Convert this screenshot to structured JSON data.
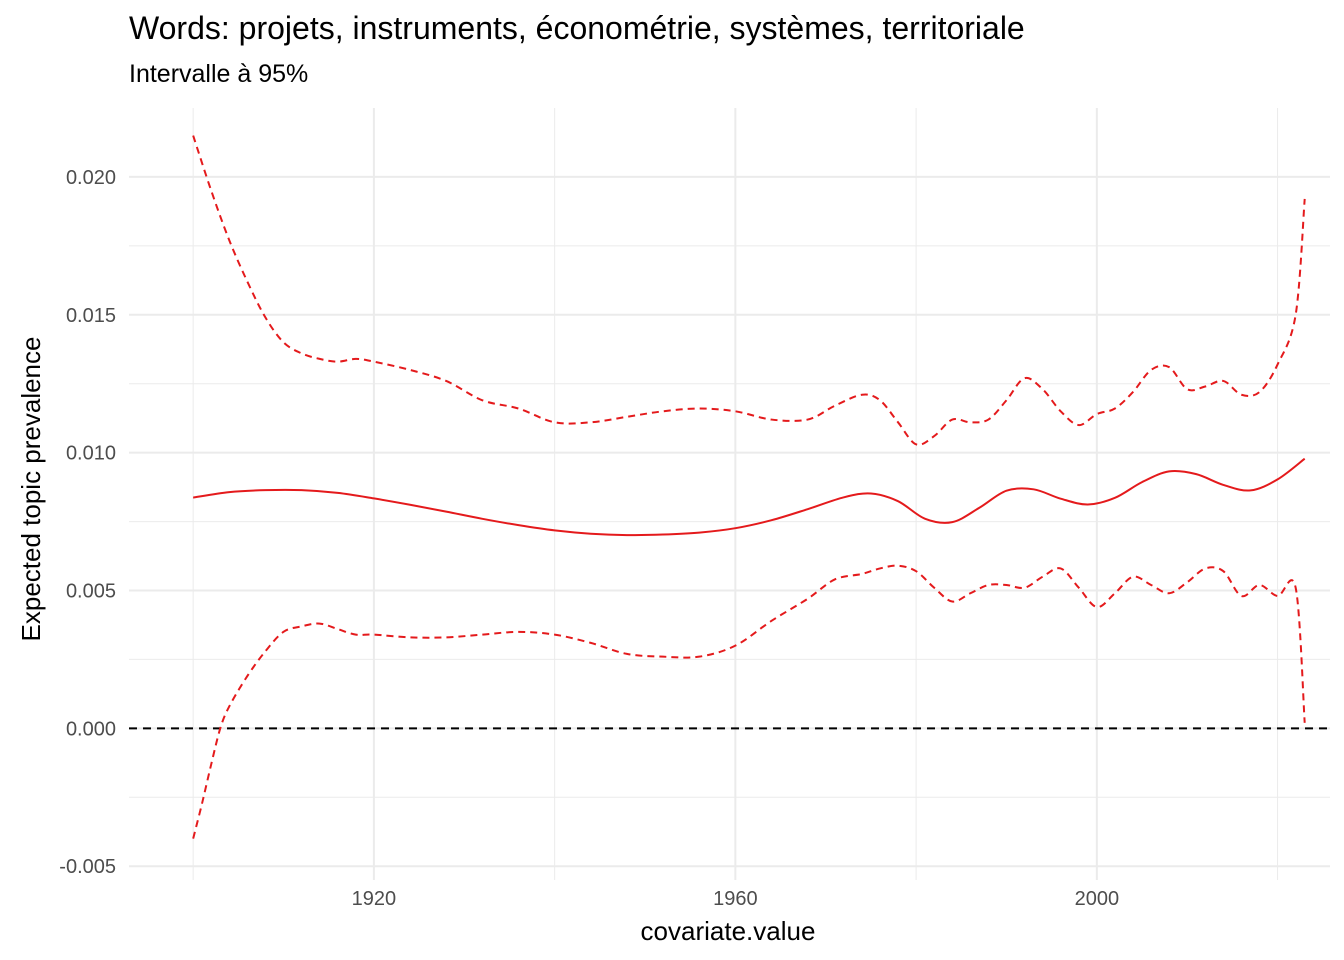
{
  "chart_data": {
    "type": "line",
    "title": "Words: projets, instruments, économétrie, systèmes, territoriale",
    "subtitle": "Intervalle à 95%",
    "xlabel": "covariate.value",
    "ylabel": "Expected topic prevalence",
    "xlim": [
      1892.9,
      2025.8
    ],
    "ylim": [
      -0.0055,
      0.0225
    ],
    "x_ticks": [
      1920,
      1960,
      2000
    ],
    "y_ticks": [
      -0.005,
      0.0,
      0.005,
      0.01,
      0.015,
      0.02
    ],
    "y_tick_labels": [
      "-0.005",
      "0.000",
      "0.005",
      "0.010",
      "0.015",
      "0.020"
    ],
    "grid": true,
    "reference_line": {
      "y": 0.0,
      "style": "dashed",
      "color": "#000000"
    },
    "colors": {
      "series": "#e41a1c",
      "grid": "#ebebeb",
      "reference": "#000000"
    },
    "series": [
      {
        "role": "estimate",
        "style": "solid",
        "x": [
          1900,
          1904,
          1908,
          1912,
          1916,
          1920,
          1924,
          1928,
          1932,
          1936,
          1940,
          1944,
          1948,
          1952,
          1956,
          1960,
          1964,
          1968,
          1972,
          1975,
          1978,
          1981,
          1984,
          1987,
          1990,
          1993,
          1996,
          1999,
          2002,
          2005,
          2008,
          2011,
          2014,
          2017,
          2020,
          2023
        ],
        "y": [
          0.00837,
          0.00857,
          0.00864,
          0.00864,
          0.00854,
          0.00834,
          0.00811,
          0.00786,
          0.0076,
          0.00737,
          0.00718,
          0.00706,
          0.00701,
          0.00703,
          0.0071,
          0.00726,
          0.00755,
          0.00795,
          0.00838,
          0.00852,
          0.00824,
          0.0076,
          0.00748,
          0.008,
          0.00862,
          0.00867,
          0.00833,
          0.00812,
          0.00836,
          0.00893,
          0.00932,
          0.00922,
          0.00883,
          0.00863,
          0.00903,
          0.00978
        ]
      },
      {
        "role": "upper 95%",
        "style": "dashed",
        "x": [
          1900,
          1902,
          1904,
          1906,
          1908,
          1910,
          1912,
          1914,
          1916,
          1918,
          1920,
          1924,
          1928,
          1932,
          1936,
          1940,
          1944,
          1948,
          1952,
          1956,
          1960,
          1964,
          1968,
          1971,
          1974,
          1976,
          1978,
          1980,
          1982,
          1984,
          1986,
          1988,
          1990,
          1992,
          1994,
          1996,
          1998,
          2000,
          2002,
          2004,
          2006,
          2008,
          2010,
          2012,
          2014,
          2016,
          2018,
          2020,
          2022,
          2023
        ],
        "y": [
          0.0215,
          0.0195,
          0.0177,
          0.0162,
          0.0149,
          0.014,
          0.0136,
          0.0134,
          0.0133,
          0.0134,
          0.0133,
          0.013,
          0.0126,
          0.0119,
          0.0116,
          0.0111,
          0.0111,
          0.0113,
          0.0115,
          0.0116,
          0.0115,
          0.0112,
          0.0112,
          0.0117,
          0.0121,
          0.0119,
          0.0111,
          0.0103,
          0.0106,
          0.0112,
          0.0111,
          0.0112,
          0.0119,
          0.0127,
          0.0123,
          0.0115,
          0.011,
          0.0114,
          0.0116,
          0.0122,
          0.013,
          0.0131,
          0.0123,
          0.0124,
          0.0126,
          0.0121,
          0.0122,
          0.0132,
          0.015,
          0.0192
        ]
      },
      {
        "role": "lower 95%",
        "style": "dashed",
        "x": [
          1900,
          1901,
          1902,
          1903,
          1904,
          1906,
          1908,
          1910,
          1912,
          1914,
          1916,
          1918,
          1920,
          1924,
          1928,
          1932,
          1936,
          1940,
          1944,
          1948,
          1952,
          1956,
          1960,
          1964,
          1968,
          1971,
          1974,
          1976,
          1978,
          1980,
          1982,
          1984,
          1986,
          1988,
          1990,
          1992,
          1994,
          1996,
          1998,
          2000,
          2002,
          2004,
          2006,
          2008,
          2010,
          2012,
          2014,
          2016,
          2018,
          2020,
          2022,
          2023
        ],
        "y": [
          -0.004,
          -0.0027,
          -0.0013,
          0.0,
          0.0008,
          0.0019,
          0.0028,
          0.0035,
          0.0037,
          0.0038,
          0.0036,
          0.0034,
          0.0034,
          0.0033,
          0.0033,
          0.0034,
          0.0035,
          0.0034,
          0.0031,
          0.0027,
          0.0026,
          0.0026,
          0.003,
          0.0039,
          0.0047,
          0.0054,
          0.0056,
          0.0058,
          0.0059,
          0.0057,
          0.0051,
          0.0046,
          0.0049,
          0.0052,
          0.0052,
          0.0051,
          0.0055,
          0.0058,
          0.0051,
          0.0044,
          0.0049,
          0.0055,
          0.0052,
          0.0049,
          0.0053,
          0.0058,
          0.0057,
          0.0048,
          0.0052,
          0.0048,
          0.0051,
          0.0002
        ]
      }
    ]
  }
}
